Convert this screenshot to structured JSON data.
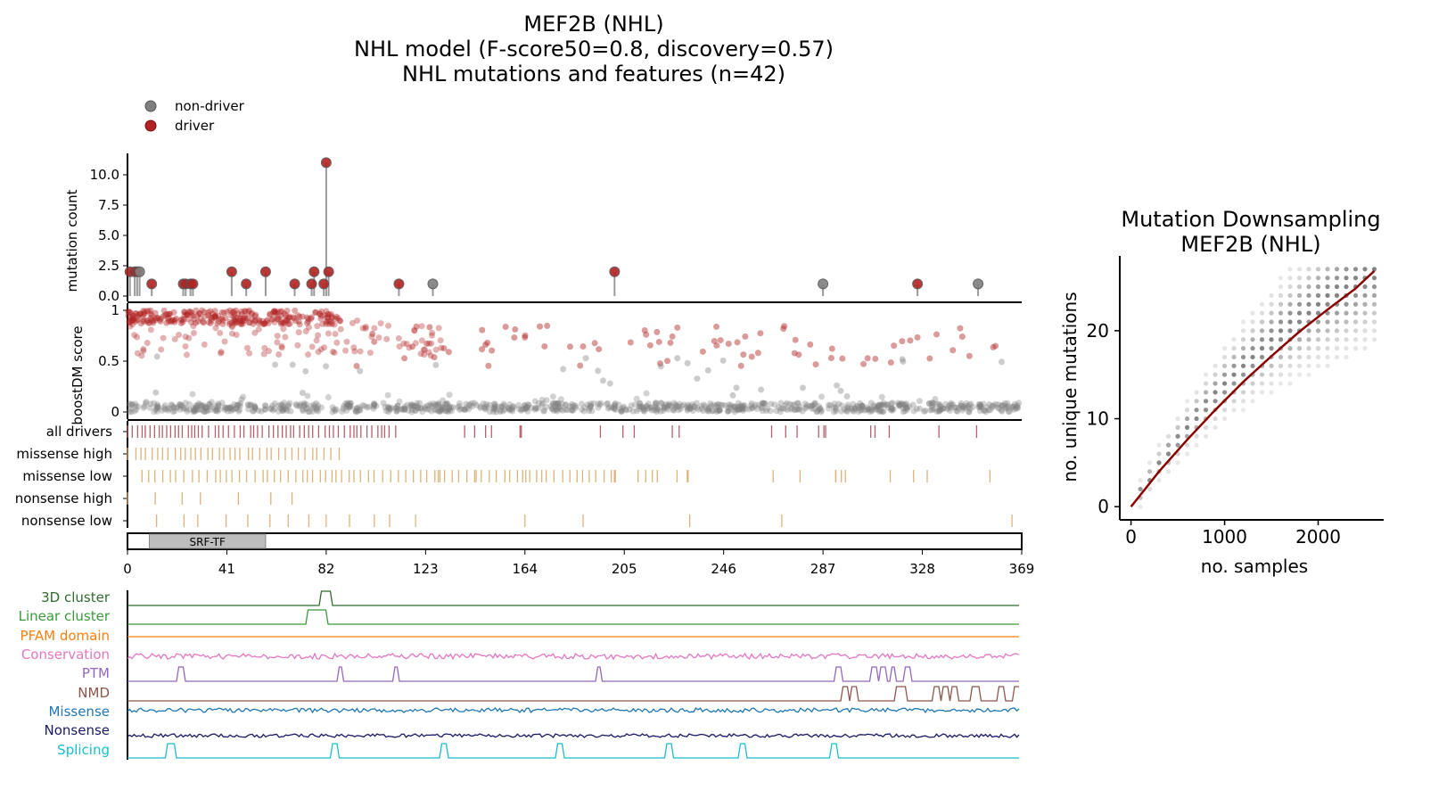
{
  "figure": {
    "title_lines": [
      "MEF2B (NHL)",
      "NHL model (F-score50=0.8, discovery=0.57)",
      "NHL mutations and features (n=42)"
    ]
  },
  "colors": {
    "driver": "#b22222",
    "non_driver": "#7f7f7f",
    "all_drivers_tick": "#b5616b",
    "variant_tick": "#ddb27c",
    "domain_fill": "#bdbdbd",
    "fit_line": "#8b0000"
  },
  "legend": {
    "items": [
      {
        "label": "non-driver",
        "color": "#7f7f7f"
      },
      {
        "label": "driver",
        "color": "#b22222"
      }
    ]
  },
  "domain": {
    "name": "SRF-TF",
    "start": 9,
    "end": 57
  },
  "tracks": {
    "labels": [
      "all drivers",
      "missense high",
      "missense low",
      "nonsense high",
      "nonsense low"
    ]
  },
  "features": [
    {
      "label": "3D cluster",
      "color": "#2f6b2f"
    },
    {
      "label": "Linear cluster",
      "color": "#3a9a3a"
    },
    {
      "label": "PFAM domain",
      "color": "#ff7f0e"
    },
    {
      "label": "Conservation",
      "color": "#e377c2"
    },
    {
      "label": "PTM",
      "color": "#9467bd"
    },
    {
      "label": "NMD",
      "color": "#8c564b"
    },
    {
      "label": "Missense",
      "color": "#1f77b4"
    },
    {
      "label": "Nonsense",
      "color": "#1a1a66"
    },
    {
      "label": "Splicing",
      "color": "#17becf"
    }
  ],
  "chart_data": [
    {
      "type": "scatter",
      "title": "",
      "xlabel": "",
      "ylabel": "mutation count",
      "xlim": [
        0,
        369
      ],
      "ylim": [
        0,
        11
      ],
      "yticks": [
        "0.0",
        "2.5",
        "5.0",
        "7.5",
        "10.0"
      ],
      "xticks": [
        "0",
        "41",
        "82",
        "123",
        "164",
        "205",
        "246",
        "287",
        "328",
        "369"
      ],
      "series": [
        {
          "name": "driver",
          "points": [
            [
              1,
              2
            ],
            [
              3,
              2
            ],
            [
              4,
              2
            ],
            [
              10,
              1
            ],
            [
              23,
              1
            ],
            [
              24,
              1
            ],
            [
              26,
              1
            ],
            [
              27,
              1
            ],
            [
              43,
              2
            ],
            [
              49,
              1
            ],
            [
              57,
              2
            ],
            [
              69,
              1
            ],
            [
              76,
              1
            ],
            [
              77,
              2
            ],
            [
              81,
              1
            ],
            [
              83,
              2
            ],
            [
              82,
              11
            ],
            [
              112,
              1
            ],
            [
              201,
              2
            ],
            [
              326,
              1
            ]
          ]
        },
        {
          "name": "non-driver",
          "points": [
            [
              5,
              2
            ],
            [
              126,
              1
            ],
            [
              287,
              1
            ],
            [
              351,
              1
            ]
          ]
        }
      ]
    },
    {
      "type": "scatter",
      "title": "",
      "xlabel": "",
      "ylabel": "boostDM score",
      "xlim": [
        0,
        369
      ],
      "ylim": [
        0,
        1
      ],
      "yticks": [
        "0",
        "0.5",
        "1"
      ],
      "series": [
        {
          "name": "driver",
          "description_points": "clustered near 0.9-1.0 for positions 0-85, scattered 0.4-0.8 beyond"
        },
        {
          "name": "non-driver",
          "description_points": "dense band near 0.0-0.1 across all positions"
        }
      ]
    },
    {
      "type": "scatter",
      "title": "Mutation Downsampling\nMEF2B (NHL)",
      "xlabel": "no. samples",
      "ylabel": "no. unique mutations",
      "xlim": [
        -120,
        2700
      ],
      "ylim": [
        -1.5,
        28.5
      ],
      "xticks": [
        "0",
        "1000",
        "2000"
      ],
      "yticks": [
        "0",
        "10",
        "20"
      ],
      "fit": {
        "x": [
          0,
          300,
          600,
          900,
          1200,
          1500,
          1800,
          2100,
          2400,
          2600
        ],
        "y": [
          0,
          4,
          7.6,
          11,
          14.2,
          17.1,
          19.9,
          22.4,
          24.8,
          26.8
        ]
      }
    }
  ]
}
